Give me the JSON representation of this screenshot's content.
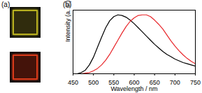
{
  "photo_panel": {
    "label": "(a)"
  },
  "chart_data": {
    "type": "line",
    "title": "(b)",
    "x_label": "Wavelength / nm",
    "y_label": "Intensity (a. u.)",
    "x": [
      460,
      470,
      480,
      490,
      500,
      510,
      520,
      530,
      540,
      550,
      560,
      570,
      580,
      590,
      600,
      610,
      620,
      630,
      640,
      650,
      660,
      670,
      680,
      690,
      700,
      710,
      720,
      730,
      740,
      750
    ],
    "series": [
      {
        "color": "#000000",
        "values": [
          0.0,
          0.02,
          0.06,
          0.15,
          0.28,
          0.45,
          0.62,
          0.78,
          0.9,
          0.97,
          1.0,
          0.99,
          0.96,
          0.91,
          0.85,
          0.78,
          0.71,
          0.64,
          0.57,
          0.5,
          0.44,
          0.38,
          0.33,
          0.29,
          0.25,
          0.22,
          0.19,
          0.17,
          0.15,
          0.13
        ]
      },
      {
        "color": "#e8262a",
        "values": [
          0.0,
          0.0,
          0.01,
          0.02,
          0.05,
          0.09,
          0.15,
          0.23,
          0.33,
          0.45,
          0.57,
          0.69,
          0.8,
          0.89,
          0.95,
          0.99,
          1.0,
          1.0,
          0.97,
          0.91,
          0.84,
          0.76,
          0.66,
          0.56,
          0.47,
          0.39,
          0.32,
          0.26,
          0.21,
          0.17
        ]
      }
    ],
    "xlim": [
      450,
      750
    ],
    "xticks": [
      450,
      500,
      550,
      600,
      650,
      700,
      750
    ],
    "ylim": [
      0,
      1.08
    ],
    "tick_labels": "x"
  }
}
